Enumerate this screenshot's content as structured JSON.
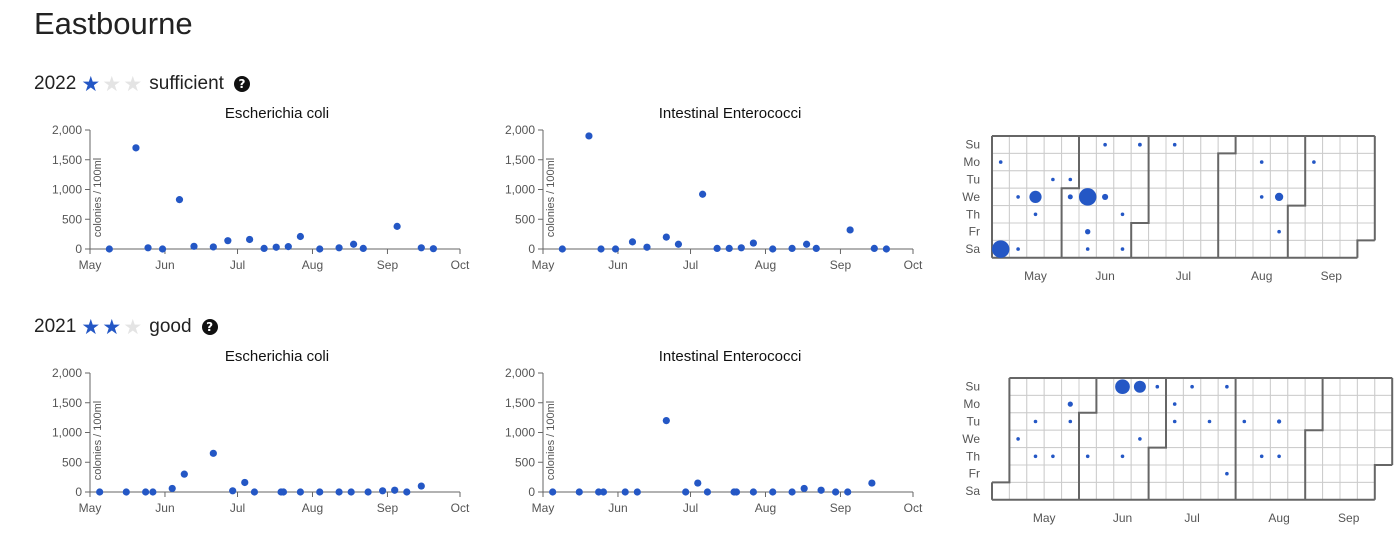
{
  "title": "Eastbourne",
  "colors": {
    "accent": "#2457c5",
    "grid": "#cccccc",
    "border": "#666666"
  },
  "years": [
    {
      "year": "2022",
      "stars": 1,
      "rating": "sufficient",
      "help_icon": "question-circle-icon",
      "charts": [
        {
          "type": "scatter",
          "title": "Escherichia coli",
          "ylabel": "colonies / 100ml",
          "ylim": [
            0,
            2000
          ],
          "yticks": [
            0,
            500,
            1000,
            1500,
            2000
          ],
          "yticklabels": [
            "0",
            "500",
            "1,000",
            "1,500",
            "2,000"
          ],
          "xlim_days": [
            0,
            153
          ],
          "xticks_days": [
            0,
            31,
            61,
            92,
            123,
            153
          ],
          "xticklabels": [
            "May",
            "Jun",
            "Jul",
            "Aug",
            "Sep",
            "Oct"
          ],
          "points": [
            [
              8,
              0
            ],
            [
              19,
              1700
            ],
            [
              24,
              20
            ],
            [
              30,
              0
            ],
            [
              37,
              830
            ],
            [
              43,
              45
            ],
            [
              51,
              35
            ],
            [
              57,
              140
            ],
            [
              66,
              160
            ],
            [
              72,
              10
            ],
            [
              77,
              30
            ],
            [
              82,
              40
            ],
            [
              87,
              210
            ],
            [
              95,
              0
            ],
            [
              103,
              20
            ],
            [
              109,
              80
            ],
            [
              113,
              10
            ],
            [
              127,
              380
            ],
            [
              137,
              20
            ],
            [
              142,
              5
            ]
          ]
        },
        {
          "type": "scatter",
          "title": "Intestinal Enterococci",
          "ylabel": "colonies / 100ml",
          "ylim": [
            0,
            2000
          ],
          "yticks": [
            0,
            500,
            1000,
            1500,
            2000
          ],
          "yticklabels": [
            "0",
            "500",
            "1,000",
            "1,500",
            "2,000"
          ],
          "xlim_days": [
            0,
            153
          ],
          "xticks_days": [
            0,
            31,
            61,
            92,
            123,
            153
          ],
          "xticklabels": [
            "May",
            "Jun",
            "Jul",
            "Aug",
            "Sep",
            "Oct"
          ],
          "points": [
            [
              8,
              0
            ],
            [
              19,
              1900
            ],
            [
              24,
              0
            ],
            [
              30,
              0
            ],
            [
              37,
              120
            ],
            [
              43,
              30
            ],
            [
              51,
              200
            ],
            [
              56,
              80
            ],
            [
              66,
              920
            ],
            [
              72,
              10
            ],
            [
              77,
              10
            ],
            [
              82,
              20
            ],
            [
              87,
              100
            ],
            [
              95,
              0
            ],
            [
              103,
              10
            ],
            [
              109,
              80
            ],
            [
              113,
              10
            ],
            [
              127,
              320
            ],
            [
              137,
              10
            ],
            [
              142,
              0
            ]
          ]
        }
      ],
      "calendar": {
        "day_labels": [
          "Su",
          "Mo",
          "Tu",
          "We",
          "Th",
          "Fr",
          "Sa"
        ],
        "month_labels": [
          "May",
          "Jun",
          "Jul",
          "Aug",
          "Sep"
        ],
        "first_weekday": 0,
        "points": [
          [
            1,
            30
          ],
          [
            6,
            1700
          ],
          [
            10,
            20
          ],
          [
            13,
            20
          ],
          [
            17,
            830
          ],
          [
            18,
            40
          ],
          [
            23,
            35
          ],
          [
            30,
            35
          ],
          [
            31,
            140
          ],
          [
            38,
            1700
          ],
          [
            40,
            160
          ],
          [
            41,
            30
          ],
          [
            42,
            30
          ],
          [
            45,
            210
          ],
          [
            53,
            0
          ],
          [
            55,
            20
          ],
          [
            56,
            80
          ],
          [
            70,
            20
          ],
          [
            106,
            0
          ],
          [
            108,
            5
          ],
          [
            115,
            380
          ],
          [
            117,
            20
          ],
          [
            127,
            30
          ]
        ]
      }
    },
    {
      "year": "2021",
      "stars": 2,
      "rating": "good",
      "help_icon": "question-circle-icon",
      "charts": [
        {
          "type": "scatter",
          "title": "Escherichia coli",
          "ylabel": "colonies / 100ml",
          "ylim": [
            0,
            2000
          ],
          "yticks": [
            0,
            500,
            1000,
            1500,
            2000
          ],
          "yticklabels": [
            "0",
            "500",
            "1,000",
            "1,500",
            "2,000"
          ],
          "xlim_days": [
            0,
            153
          ],
          "xticks_days": [
            0,
            31,
            61,
            92,
            123,
            153
          ],
          "xticklabels": [
            "May",
            "Jun",
            "Jul",
            "Aug",
            "Sep",
            "Oct"
          ],
          "points": [
            [
              4,
              0
            ],
            [
              15,
              0
            ],
            [
              23,
              0
            ],
            [
              26,
              0
            ],
            [
              34,
              60
            ],
            [
              39,
              300
            ],
            [
              51,
              650
            ],
            [
              59,
              20
            ],
            [
              64,
              160
            ],
            [
              68,
              0
            ],
            [
              79,
              0
            ],
            [
              80,
              0
            ],
            [
              87,
              0
            ],
            [
              95,
              0
            ],
            [
              103,
              0
            ],
            [
              108,
              0
            ],
            [
              115,
              0
            ],
            [
              121,
              20
            ],
            [
              126,
              30
            ],
            [
              131,
              0
            ],
            [
              137,
              100
            ]
          ]
        },
        {
          "type": "scatter",
          "title": "Intestinal Enterococci",
          "ylabel": "colonies / 100ml",
          "ylim": [
            0,
            2000
          ],
          "yticks": [
            0,
            500,
            1000,
            1500,
            2000
          ],
          "yticklabels": [
            "0",
            "500",
            "1,000",
            "1,500",
            "2,000"
          ],
          "xlim_days": [
            0,
            153
          ],
          "xticks_days": [
            0,
            31,
            61,
            92,
            123,
            153
          ],
          "xticklabels": [
            "May",
            "Jun",
            "Jul",
            "Aug",
            "Sep",
            "Oct"
          ],
          "points": [
            [
              4,
              0
            ],
            [
              15,
              0
            ],
            [
              23,
              0
            ],
            [
              25,
              0
            ],
            [
              34,
              0
            ],
            [
              39,
              0
            ],
            [
              51,
              1200
            ],
            [
              59,
              0
            ],
            [
              64,
              150
            ],
            [
              68,
              0
            ],
            [
              79,
              0
            ],
            [
              80,
              0
            ],
            [
              87,
              0
            ],
            [
              95,
              0
            ],
            [
              103,
              0
            ],
            [
              108,
              60
            ],
            [
              115,
              30
            ],
            [
              121,
              0
            ],
            [
              126,
              0
            ],
            [
              136,
              150
            ]
          ]
        }
      ],
      "calendar": {
        "day_labels": [
          "Su",
          "Mo",
          "Tu",
          "We",
          "Th",
          "Fr",
          "Sa"
        ],
        "month_labels": [
          "May",
          "Jun",
          "Jul",
          "Aug",
          "Sep"
        ],
        "first_weekday": 6,
        "points": [
          [
            4,
            0
          ],
          [
            10,
            0
          ],
          [
            12,
            20
          ],
          [
            19,
            60
          ],
          [
            23,
            150
          ],
          [
            24,
            0
          ],
          [
            33,
            40
          ],
          [
            43,
            1200
          ],
          [
            47,
            0
          ],
          [
            50,
            800
          ],
          [
            53,
            0
          ],
          [
            57,
            0
          ],
          [
            65,
            0
          ],
          [
            66,
            0
          ],
          [
            71,
            0
          ],
          [
            80,
            0
          ],
          [
            85,
            0
          ],
          [
            90,
            0
          ],
          [
            94,
            0
          ],
          [
            103,
            0
          ],
          [
            108,
            100
          ],
          [
            110,
            0
          ]
        ]
      }
    }
  ]
}
